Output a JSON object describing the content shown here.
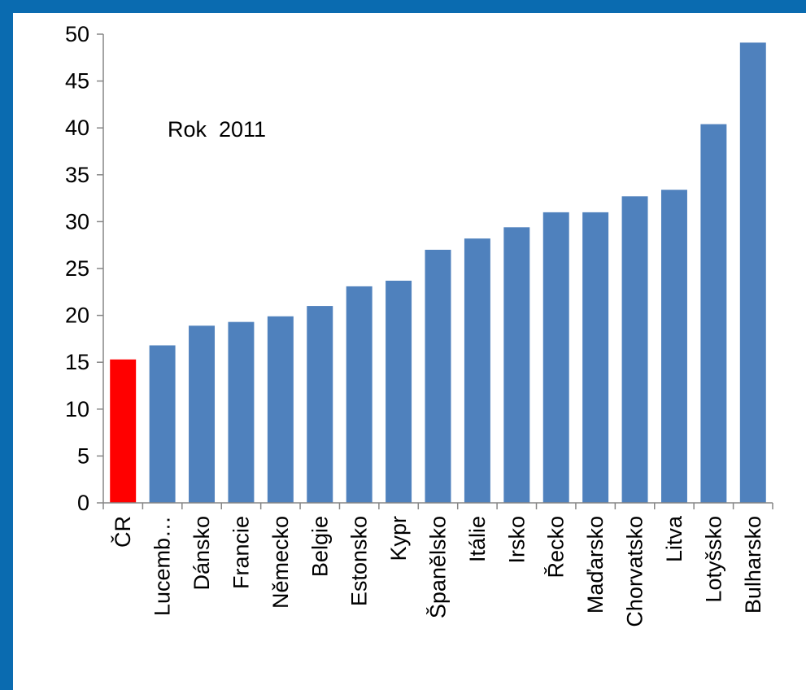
{
  "chart_data": {
    "type": "bar",
    "annotation": "Rok  2011",
    "categories": [
      "ČR",
      "Lucemb…",
      "Dánsko",
      "Francie",
      "Německo",
      "Belgie",
      "Estonsko",
      "Kypr",
      "Španělsko",
      "Itálie",
      "Irsko",
      "Řecko",
      "Maďarsko",
      "Chorvatsko",
      "Litva",
      "Lotyšsko",
      "Bulharsko"
    ],
    "values": [
      15.3,
      16.8,
      18.9,
      19.3,
      19.9,
      21.0,
      23.1,
      23.7,
      27.0,
      28.2,
      29.4,
      31.0,
      31.0,
      32.7,
      33.4,
      40.4,
      49.1
    ],
    "highlight_index": 0,
    "ylim": [
      0,
      50
    ],
    "yticks": [
      0,
      5,
      10,
      15,
      20,
      25,
      30,
      35,
      40,
      45,
      50
    ],
    "grid": false,
    "colors": {
      "bar": "#4f81bd",
      "highlight": "#ff0000",
      "border": "#0a6bb0",
      "axis": "#868686"
    }
  }
}
